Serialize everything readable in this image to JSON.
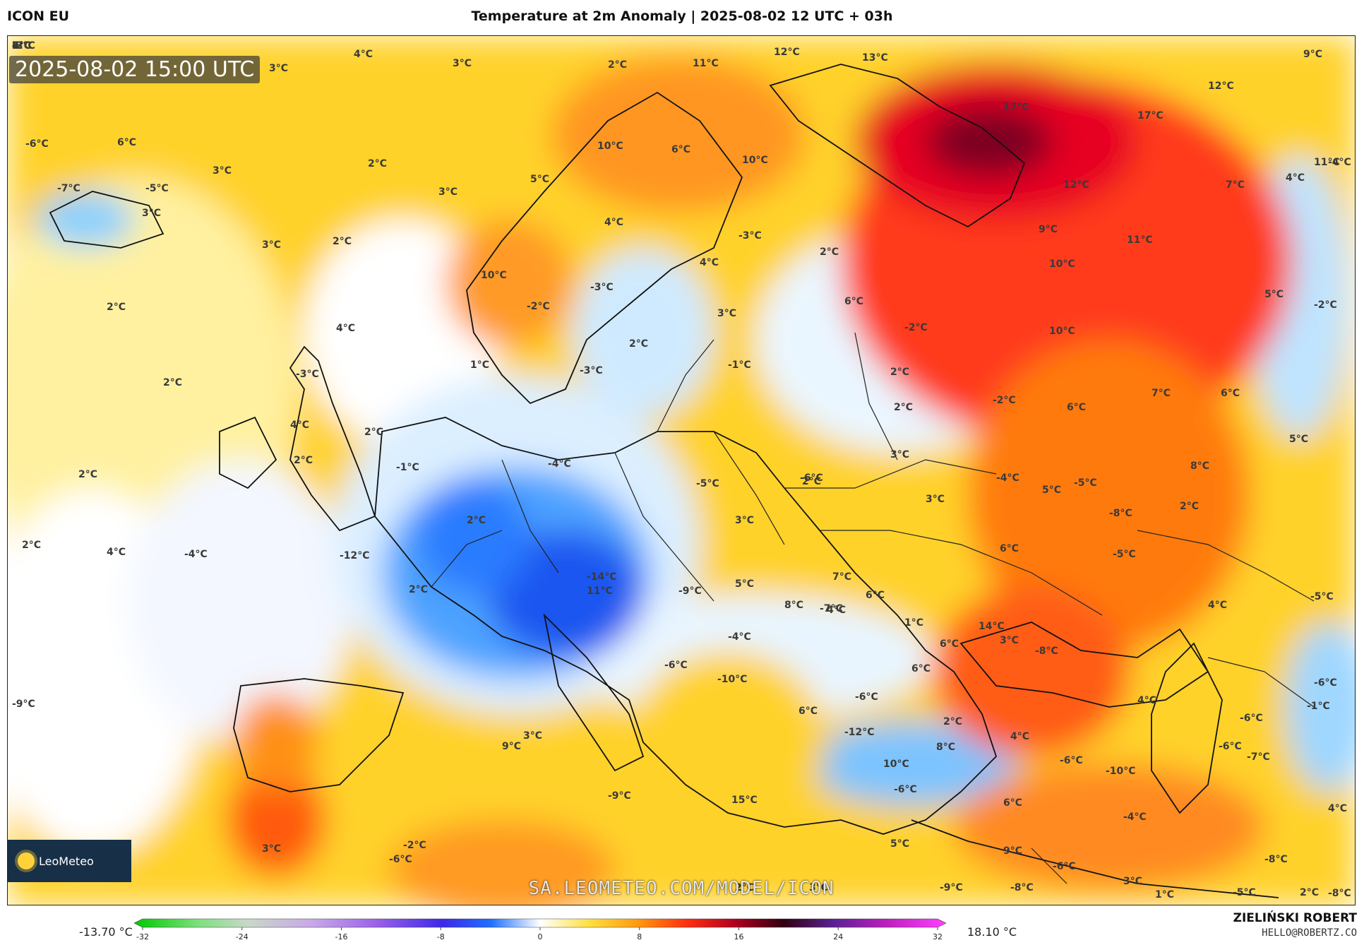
{
  "header": {
    "model": "ICON EU",
    "title": "Temperature at 2m Anomaly | 2025-08-02 12 UTC + 03h"
  },
  "map": {
    "valid_time": "2025-08-02 15:00 UTC",
    "logo_text": "LeoMeteo",
    "watermark": "SA.LEOMETEO.COM/MODEL/ICON",
    "temperature_labels": [
      "4°C",
      "3°C",
      "3°C",
      "2°C",
      "11°C",
      "12°C",
      "13°C",
      "9°C",
      "12°C",
      "17°C",
      "17°C",
      "-6°C",
      "6°C",
      "-7°C",
      "-5°C",
      "3°C",
      "3°C",
      "2°C",
      "10°C",
      "6°C",
      "10°C",
      "12°C",
      "5°C",
      "3°C",
      "4°C",
      "-4°C",
      "7°C",
      "10°C",
      "11°C",
      "4°C",
      "-3°C",
      "2°C",
      "3°C",
      "4°C",
      "2°C",
      "10°C",
      "9°C",
      "11°C",
      "2°C",
      "-3°C",
      "-2°C",
      "6°C",
      "-2°C",
      "5°C",
      "-2°C",
      "2°C",
      "3°C",
      "4°C",
      "1°C",
      "-3°C",
      "-1°C",
      "2°C",
      "10°C",
      "-2°C",
      "6°C",
      "7°C",
      "6°C",
      "2°C",
      "-3°C",
      "4°C",
      "2°C",
      "3°C",
      "5°C",
      "2°C",
      "-4°C",
      "-1°C",
      "-4°C",
      "2°C",
      "2°C",
      "-5°C",
      "-6°C",
      "2°C",
      "-5°C",
      "8°C",
      "5°C",
      "3°C",
      "2°C",
      "3°C",
      "2°C",
      "-8°C",
      "2°C",
      "4°C",
      "-4°C",
      "-12°C",
      "-14°C",
      "2°C",
      "7°C",
      "6°C",
      "-5°C",
      "5°C",
      "6°C",
      "4°C",
      "4°C",
      "1°C",
      "3°C",
      "6°C",
      "-9°C",
      "11°C",
      "8°C",
      "-7°C",
      "-4°C",
      "-8°C",
      "-5°C",
      "-10°C",
      "-6°C",
      "6°C",
      "-6°C",
      "2°C",
      "4°C",
      "-6°C",
      "14°C",
      "3°C",
      "4°C",
      "-6°C",
      "-6°C",
      "6°C",
      "-9°C",
      "9°C",
      "8°C",
      "-6°C",
      "15°C",
      "-10°C",
      "-1°C",
      "-6°C",
      "-9°C",
      "-12°C",
      "-7°C",
      "10°C",
      "-6°C",
      "-4°C",
      "4°C",
      "-8°C",
      "6°C",
      "9°C",
      "3°C",
      "2°C",
      "-2°C",
      "3°C",
      "-9°C",
      "-8°C",
      "-6°C",
      "1°C",
      "-5°C",
      "-8°C",
      "2°C",
      "5°C",
      "3°C",
      "-3°C",
      "2°C",
      "7°C",
      "4°C",
      "-2°C",
      "6°C",
      "3°C"
    ]
  },
  "scale": {
    "min_label": "-13.70 °C",
    "max_label": "18.10 °C",
    "ticks": [
      "-32",
      "-24",
      "-16",
      "-8",
      "0",
      "8",
      "16",
      "24",
      "32"
    ]
  },
  "footer": {
    "author": "ZIELIŃSKI ROBERT",
    "contact": "HELLO@ROBERTZ.CO"
  }
}
